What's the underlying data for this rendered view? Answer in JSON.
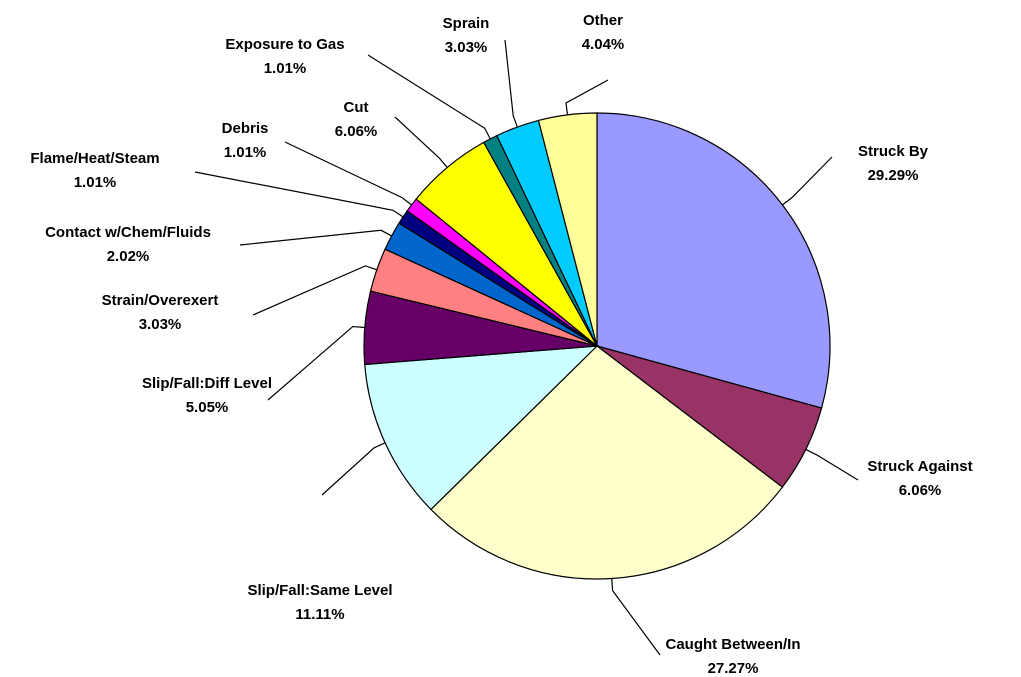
{
  "chart_data": {
    "type": "pie",
    "categories": [
      "Struck By",
      "Struck Against",
      "Caught Between/In",
      "Slip/Fall:Same Level",
      "Slip/Fall:Diff Level",
      "Strain/Overexert",
      "Contact w/Chem/Fluids",
      "Flame/Heat/Steam",
      "Debris",
      "Cut",
      "Exposure to Gas",
      "Sprain",
      "Other"
    ],
    "values": [
      29.29,
      6.06,
      27.27,
      11.11,
      5.05,
      3.03,
      2.02,
      1.01,
      1.01,
      6.06,
      1.01,
      3.03,
      4.04
    ],
    "value_labels": [
      "29.29%",
      "6.06%",
      "27.27%",
      "11.11%",
      "5.05%",
      "3.03%",
      "2.02%",
      "1.01%",
      "1.01%",
      "6.06%",
      "1.01%",
      "3.03%",
      "4.04%"
    ],
    "colors": [
      "#9999ff",
      "#993366",
      "#ffffcc",
      "#ccffff",
      "#660066",
      "#ff8080",
      "#0066cc",
      "#000080",
      "#ff00ff",
      "#ffff00",
      "#008080",
      "#00ccff",
      "#ffff99"
    ]
  }
}
